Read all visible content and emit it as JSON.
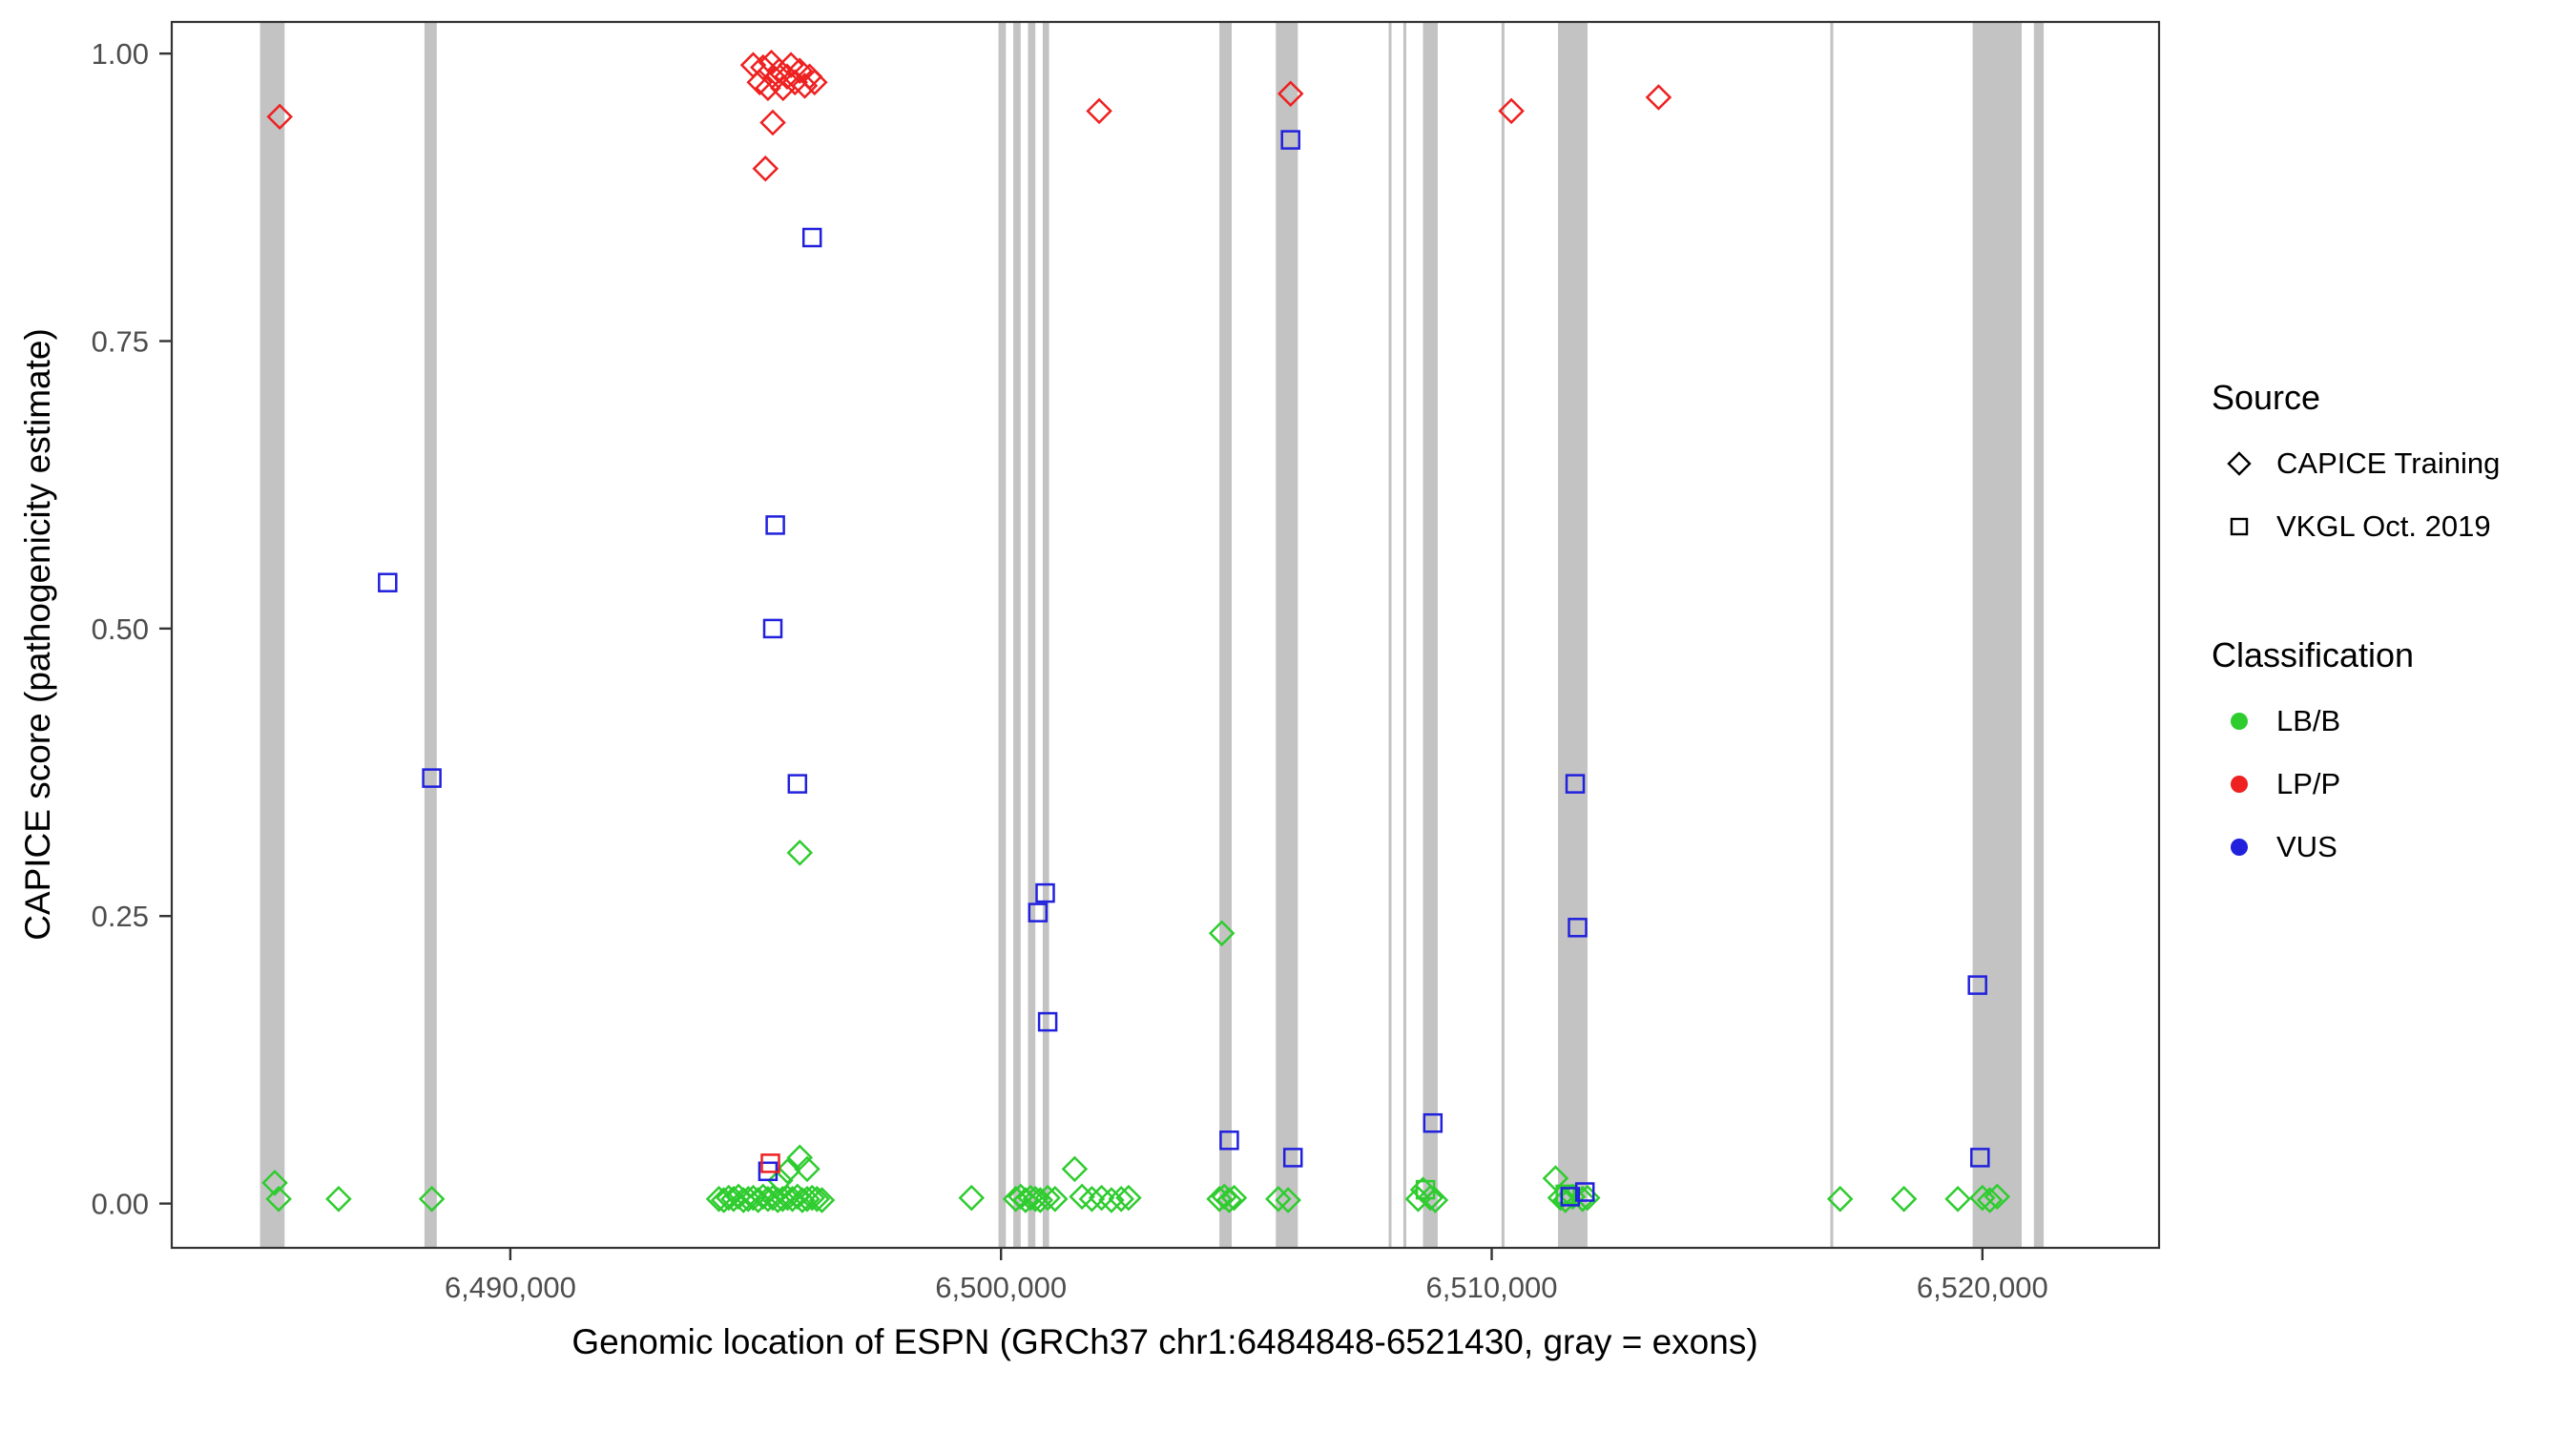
{
  "chart_data": {
    "type": "scatter",
    "title": "",
    "xlabel": "Genomic location of ESPN (GRCh37 chr1:6484848-6521430, gray = exons)",
    "ylabel": "CAPICE score (pathogenicity estimate)",
    "xlim": [
      6483100,
      6523600
    ],
    "ylim": [
      -0.0385,
      1.0275
    ],
    "grid": "off",
    "legend_position": "right",
    "x_ticks": [
      {
        "value": 6490000,
        "label": "6,490,000"
      },
      {
        "value": 6500000,
        "label": "6,500,000"
      },
      {
        "value": 6510000,
        "label": "6,510,000"
      },
      {
        "value": 6520000,
        "label": "6,520,000"
      }
    ],
    "y_ticks": [
      {
        "value": 0.0,
        "label": "0.00"
      },
      {
        "value": 0.25,
        "label": "0.25"
      },
      {
        "value": 0.5,
        "label": "0.50"
      },
      {
        "value": 0.75,
        "label": "0.75"
      },
      {
        "value": 1.0,
        "label": "1.00"
      }
    ],
    "exon_color": "#c3c3c3",
    "exons": [
      [
        6484900,
        6485400
      ],
      [
        6488250,
        6488500
      ],
      [
        6499950,
        6500100
      ],
      [
        6500250,
        6500400
      ],
      [
        6500550,
        6500700
      ],
      [
        6500850,
        6500980
      ],
      [
        6504450,
        6504700
      ],
      [
        6505600,
        6506050
      ],
      [
        6507900,
        6507950
      ],
      [
        6508200,
        6508260
      ],
      [
        6508600,
        6508900
      ],
      [
        6510200,
        6510260
      ],
      [
        6511350,
        6511950
      ],
      [
        6516900,
        6516960
      ],
      [
        6519800,
        6520800
      ],
      [
        6521050,
        6521250
      ]
    ],
    "colors": {
      "LB/B": "#2ecc2e",
      "LP/P": "#ee2020",
      "VUS": "#2020dd"
    },
    "series": [
      {
        "name": "CAPICE Training LB/B",
        "source": "CAPICE Training",
        "classification": "LB/B",
        "shape": "diamond",
        "points": [
          [
            6485200,
            0.018
          ],
          [
            6485280,
            0.004
          ],
          [
            6486500,
            0.004
          ],
          [
            6488400,
            0.004
          ],
          [
            6494250,
            0.004
          ],
          [
            6494350,
            0.003
          ],
          [
            6494450,
            0.005
          ],
          [
            6494550,
            0.004
          ],
          [
            6494650,
            0.006
          ],
          [
            6494750,
            0.003
          ],
          [
            6494850,
            0.004
          ],
          [
            6494950,
            0.005
          ],
          [
            6495050,
            0.003
          ],
          [
            6495150,
            0.006
          ],
          [
            6495250,
            0.004
          ],
          [
            6495350,
            0.005
          ],
          [
            6495450,
            0.003
          ],
          [
            6495550,
            0.004
          ],
          [
            6495650,
            0.005
          ],
          [
            6495750,
            0.004
          ],
          [
            6495850,
            0.006
          ],
          [
            6495950,
            0.003
          ],
          [
            6496050,
            0.004
          ],
          [
            6496150,
            0.005
          ],
          [
            6496250,
            0.004
          ],
          [
            6496350,
            0.003
          ],
          [
            6495500,
            0.02
          ],
          [
            6495650,
            0.028
          ],
          [
            6495900,
            0.04
          ],
          [
            6496050,
            0.03
          ],
          [
            6495900,
            0.305
          ],
          [
            6499400,
            0.005
          ],
          [
            6500300,
            0.004
          ],
          [
            6500400,
            0.006
          ],
          [
            6500500,
            0.003
          ],
          [
            6500600,
            0.005
          ],
          [
            6500700,
            0.004
          ],
          [
            6500800,
            0.003
          ],
          [
            6500950,
            0.005
          ],
          [
            6501100,
            0.004
          ],
          [
            6501500,
            0.03
          ],
          [
            6501650,
            0.006
          ],
          [
            6501850,
            0.004
          ],
          [
            6502050,
            0.005
          ],
          [
            6502250,
            0.003
          ],
          [
            6502450,
            0.004
          ],
          [
            6502600,
            0.005
          ],
          [
            6504450,
            0.004
          ],
          [
            6504550,
            0.006
          ],
          [
            6504650,
            0.003
          ],
          [
            6504750,
            0.005
          ],
          [
            6504500,
            0.235
          ],
          [
            6505650,
            0.004
          ],
          [
            6505850,
            0.003
          ],
          [
            6508500,
            0.004
          ],
          [
            6508600,
            0.012
          ],
          [
            6508750,
            0.005
          ],
          [
            6508850,
            0.003
          ],
          [
            6511300,
            0.022
          ],
          [
            6511400,
            0.005
          ],
          [
            6511500,
            0.003
          ],
          [
            6511650,
            0.006
          ],
          [
            6511850,
            0.004
          ],
          [
            6511950,
            0.005
          ],
          [
            6517100,
            0.004
          ],
          [
            6518400,
            0.004
          ],
          [
            6519500,
            0.004
          ],
          [
            6520000,
            0.005
          ],
          [
            6520150,
            0.003
          ],
          [
            6520300,
            0.006
          ]
        ]
      },
      {
        "name": "VKGL Oct. 2019 LB/B",
        "source": "VKGL Oct. 2019",
        "classification": "LB/B",
        "shape": "square",
        "points": [
          [
            6508650,
            0.012
          ],
          [
            6511500,
            0.008
          ]
        ]
      },
      {
        "name": "VKGL Oct. 2019 VUS",
        "source": "VKGL Oct. 2019",
        "classification": "VUS",
        "shape": "square",
        "points": [
          [
            6487500,
            0.54
          ],
          [
            6488400,
            0.37
          ],
          [
            6495400,
            0.59
          ],
          [
            6495350,
            0.5
          ],
          [
            6495850,
            0.365
          ],
          [
            6496150,
            0.84
          ],
          [
            6495250,
            0.028
          ],
          [
            6500750,
            0.253
          ],
          [
            6500900,
            0.27
          ],
          [
            6500950,
            0.158
          ],
          [
            6504650,
            0.055
          ],
          [
            6505900,
            0.925
          ],
          [
            6505950,
            0.04
          ],
          [
            6508800,
            0.07
          ],
          [
            6511700,
            0.365
          ],
          [
            6511750,
            0.24
          ],
          [
            6511600,
            0.006
          ],
          [
            6511900,
            0.01
          ],
          [
            6519900,
            0.19
          ],
          [
            6519950,
            0.04
          ]
        ]
      },
      {
        "name": "VKGL Oct. 2019 LP/P",
        "source": "VKGL Oct. 2019",
        "classification": "LP/P",
        "shape": "square",
        "points": [
          [
            6495300,
            0.035
          ]
        ]
      },
      {
        "name": "CAPICE Training LP/P",
        "source": "CAPICE Training",
        "classification": "LP/P",
        "shape": "diamond",
        "points": [
          [
            6485300,
            0.945
          ],
          [
            6494950,
            0.99
          ],
          [
            6495080,
            0.975
          ],
          [
            6495150,
            0.988
          ],
          [
            6495250,
            0.97
          ],
          [
            6495320,
            0.992
          ],
          [
            6495400,
            0.978
          ],
          [
            6495480,
            0.985
          ],
          [
            6495560,
            0.97
          ],
          [
            6495640,
            0.98
          ],
          [
            6495720,
            0.99
          ],
          [
            6495800,
            0.975
          ],
          [
            6495900,
            0.985
          ],
          [
            6496000,
            0.972
          ],
          [
            6496100,
            0.98
          ],
          [
            6496200,
            0.975
          ],
          [
            6495350,
            0.94
          ],
          [
            6495200,
            0.9
          ],
          [
            6502000,
            0.95
          ],
          [
            6505900,
            0.965
          ],
          [
            6510400,
            0.95
          ],
          [
            6513400,
            0.962
          ]
        ]
      }
    ],
    "legend": {
      "source": {
        "title": "Source",
        "items": [
          {
            "label": "CAPICE Training",
            "shape": "diamond"
          },
          {
            "label": "VKGL Oct. 2019",
            "shape": "square"
          }
        ]
      },
      "classification": {
        "title": "Classification",
        "items": [
          {
            "label": "LB/B",
            "color": "#2ecc2e"
          },
          {
            "label": "LP/P",
            "color": "#ee2020"
          },
          {
            "label": "VUS",
            "color": "#2020dd"
          }
        ]
      }
    }
  }
}
